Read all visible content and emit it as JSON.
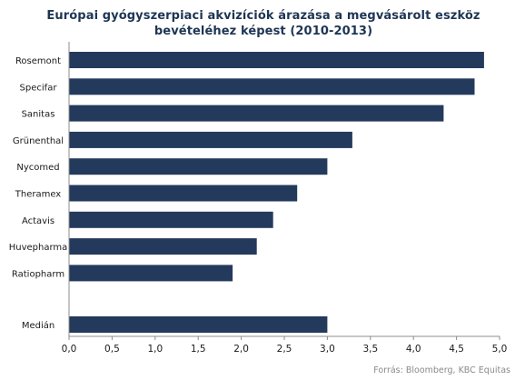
{
  "chart_data": {
    "type": "bar",
    "orientation": "horizontal",
    "title": [
      "Európai gyógyszerpiaci akvizíciók árazása a megvásárolt eszköz",
      "bevételéhez képest (2010-2013)"
    ],
    "categories": [
      "Rosemont",
      "Specifar",
      "Sanitas",
      "Grünenthal",
      "Nycomed",
      "Theramex",
      "Actavis",
      "Huvepharma",
      "Ratiopharm",
      "Medián"
    ],
    "values": [
      4.82,
      4.71,
      4.35,
      3.29,
      3.0,
      2.65,
      2.37,
      2.18,
      1.9,
      3.0
    ],
    "xlim": [
      0,
      5
    ],
    "xticks": [
      "0,0",
      "0,5",
      "1,0",
      "1,5",
      "2,0",
      "2,5",
      "3,0",
      "3,5",
      "4,0",
      "4,5",
      "5,0"
    ],
    "grid": false,
    "legend": "none",
    "bar_color": "#243a5c",
    "source": "Forrás: Bloomberg, KBC Equitas"
  }
}
